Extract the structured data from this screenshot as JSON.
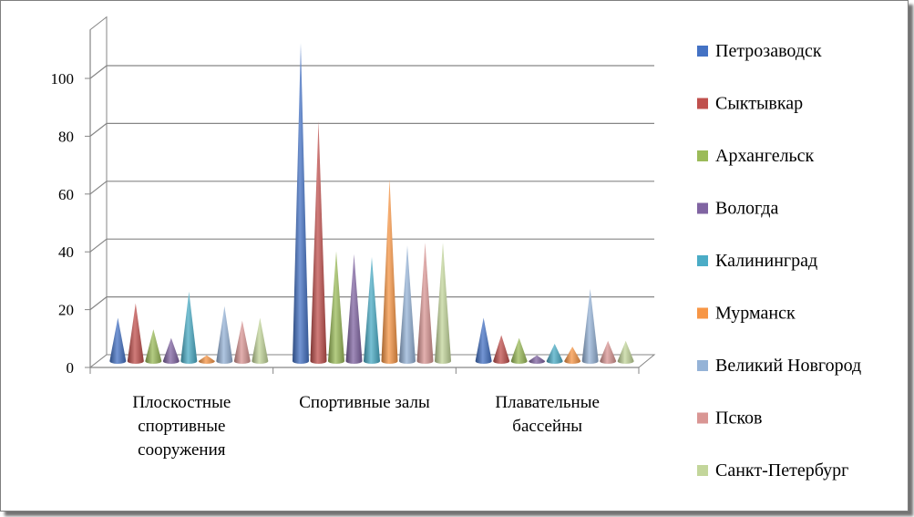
{
  "chart_data": {
    "type": "bar",
    "title": "",
    "xlabel": "",
    "ylabel": "",
    "ylim": [
      0,
      120
    ],
    "yticks": [
      0,
      20,
      40,
      60,
      80,
      100
    ],
    "grid": true,
    "legend_position": "right",
    "categories": [
      [
        "Плоскостные",
        "спортивные",
        "сооружения"
      ],
      [
        "Спортивные залы"
      ],
      [
        "Плавательные",
        "бассейны"
      ]
    ],
    "series": [
      {
        "name": "Петрозаводск",
        "color": "#4472c4",
        "values": [
          15,
          110,
          15
        ]
      },
      {
        "name": "Сыктывкар",
        "color": "#c0504d",
        "values": [
          20,
          83,
          9
        ]
      },
      {
        "name": "Архангельск",
        "color": "#9bbb59",
        "values": [
          11,
          38,
          8
        ]
      },
      {
        "name": "Вологда",
        "color": "#8064a2",
        "values": [
          8,
          37,
          2
        ]
      },
      {
        "name": "Калининград",
        "color": "#4bacc6",
        "values": [
          24,
          36,
          6
        ]
      },
      {
        "name": "Мурманск",
        "color": "#f79646",
        "values": [
          2,
          63,
          5
        ]
      },
      {
        "name": "Великий Новгород",
        "color": "#95b3d7",
        "values": [
          19,
          40,
          25
        ]
      },
      {
        "name": "Псков",
        "color": "#d99694",
        "values": [
          14,
          41,
          7
        ]
      },
      {
        "name": "Санкт-Петербург",
        "color": "#c3d69b",
        "values": [
          15,
          41,
          7
        ]
      }
    ]
  }
}
